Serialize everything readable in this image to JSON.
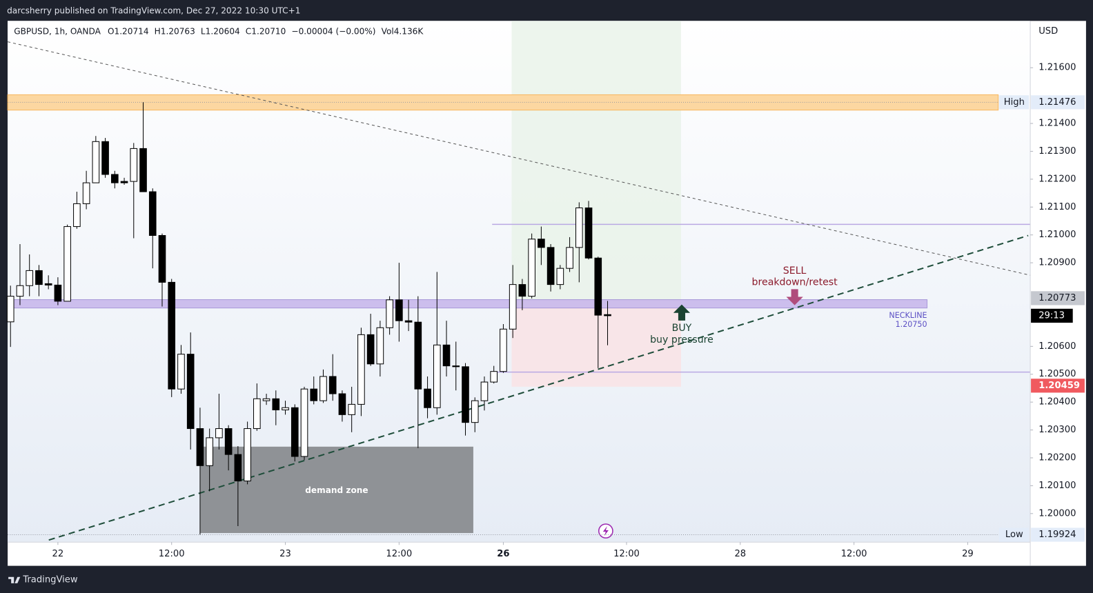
{
  "header": {
    "author_line": "darcsherry published on TradingView.com, Dec 27, 2022 10:30 UTC+1"
  },
  "footer": {
    "brand": "TradingView"
  },
  "chart_data": {
    "type": "candlestick",
    "legend": {
      "symbol": "GBPUSD, 1h, OANDA",
      "open": "O1.20714",
      "high": "H1.20763",
      "low": "L1.20604",
      "close": "C1.20710",
      "change": "−0.00004 (−0.00%)",
      "volume": "Vol4.136K"
    },
    "currency": "USD",
    "x": [
      0,
      1,
      2,
      3,
      4,
      5,
      6,
      7,
      8,
      9,
      10,
      11,
      12,
      13,
      14,
      15,
      16,
      17,
      18,
      19,
      20,
      21,
      22,
      23,
      24,
      25,
      26,
      27,
      28,
      29,
      30,
      31,
      32,
      33,
      34,
      35,
      36,
      37,
      38,
      39,
      40,
      41,
      42,
      43,
      44,
      45,
      46,
      47,
      48,
      49,
      50,
      51,
      52,
      53,
      54,
      55,
      56,
      57,
      58,
      59,
      60,
      61,
      62,
      63
    ],
    "open": [
      1.20688,
      1.2078,
      1.20818,
      1.20872,
      1.20825,
      1.2082,
      1.20762,
      1.2103,
      1.21112,
      1.21187,
      1.21335,
      1.21217,
      1.21192,
      1.21192,
      1.2131,
      1.21155,
      1.20998,
      1.2083,
      1.20447,
      1.20572,
      1.20305,
      1.20172,
      1.20272,
      1.20305,
      1.20212,
      1.20117,
      1.20305,
      1.20405,
      1.20412,
      1.20372,
      1.2038,
      1.20205,
      1.20447,
      1.20405,
      1.20492,
      1.2043,
      1.20355,
      1.20392,
      1.20642,
      1.20537,
      1.20667,
      1.20767,
      1.20692,
      1.20687,
      1.20447,
      1.2038,
      1.20605,
      1.2053,
      1.20527,
      1.20327,
      1.20405,
      1.20472,
      1.2051,
      1.20662,
      1.20822,
      1.2078,
      1.20985,
      1.20955,
      1.20822,
      1.2088,
      1.20955,
      1.21097,
      1.20917,
      1.20714
    ],
    "high": [
      1.20818,
      1.20967,
      1.2093,
      1.20892,
      1.20855,
      1.20848,
      1.21037,
      1.21155,
      1.2123,
      1.21355,
      1.21348,
      1.2123,
      1.21205,
      1.2133,
      1.21476,
      1.21167,
      1.21005,
      1.20842,
      1.20605,
      1.2065,
      1.2038,
      1.20305,
      1.2043,
      1.20317,
      1.20242,
      1.2033,
      1.20467,
      1.2043,
      1.20442,
      1.20405,
      1.20392,
      1.20455,
      1.20492,
      1.20517,
      1.20572,
      1.20442,
      1.20455,
      1.20667,
      1.20717,
      1.20692,
      1.2078,
      1.209,
      1.20767,
      1.2078,
      1.20492,
      1.20867,
      1.20692,
      1.20617,
      1.2054,
      1.20417,
      1.20492,
      1.2053,
      1.2068,
      1.20892,
      1.20842,
      1.21005,
      1.2103,
      1.20967,
      1.20892,
      1.20992,
      1.21117,
      1.21122,
      1.20922,
      1.20763
    ],
    "low": [
      1.20598,
      1.20748,
      1.2078,
      1.2078,
      1.20805,
      1.20748,
      1.20762,
      1.21022,
      1.21092,
      1.21187,
      1.21205,
      1.21167,
      1.2118,
      1.20988,
      1.21155,
      1.2088,
      1.20743,
      1.20418,
      1.2043,
      1.2023,
      1.19924,
      1.2008,
      1.2023,
      1.20155,
      1.19955,
      1.20105,
      1.20297,
      1.2039,
      1.20317,
      1.20355,
      1.20187,
      1.20192,
      1.20392,
      1.20397,
      1.20405,
      1.2033,
      1.20292,
      1.2035,
      1.2053,
      1.20492,
      1.20642,
      1.20617,
      1.20655,
      1.20235,
      1.20342,
      1.20355,
      1.20492,
      1.20442,
      1.2028,
      1.20292,
      1.2037,
      1.20467,
      1.20505,
      1.2063,
      1.2073,
      1.20772,
      1.20892,
      1.20797,
      1.20805,
      1.20867,
      1.2083,
      1.20912,
      1.20522,
      1.20604
    ],
    "close": [
      1.2078,
      1.20818,
      1.20872,
      1.20822,
      1.2082,
      1.20762,
      1.2103,
      1.21112,
      1.21187,
      1.21335,
      1.21217,
      1.21187,
      1.21187,
      1.2131,
      1.21155,
      1.20998,
      1.2083,
      1.20447,
      1.20572,
      1.20305,
      1.20172,
      1.20272,
      1.20305,
      1.20212,
      1.20117,
      1.20305,
      1.20412,
      1.20412,
      1.20372,
      1.2038,
      1.20205,
      1.20447,
      1.20405,
      1.20492,
      1.2043,
      1.20355,
      1.20392,
      1.20642,
      1.20537,
      1.20667,
      1.20767,
      1.20692,
      1.20687,
      1.20447,
      1.2038,
      1.20605,
      1.2053,
      1.20527,
      1.20327,
      1.20405,
      1.20472,
      1.2051,
      1.20662,
      1.20822,
      1.2078,
      1.20985,
      1.20955,
      1.20822,
      1.2088,
      1.20955,
      1.21097,
      1.20917,
      1.20712,
      1.2071
    ],
    "up_color": "#ffffff",
    "down_color": "#000000",
    "wick_color": "#000000",
    "xlim": [
      -0.3,
      107.6
    ],
    "xticks": [
      {
        "value": 5,
        "label": "22"
      },
      {
        "value": 17,
        "label": "12:00"
      },
      {
        "value": 29,
        "label": "23"
      },
      {
        "value": 41,
        "label": "12:00"
      },
      {
        "value": 52,
        "label": "26"
      },
      {
        "value": 65,
        "label": "12:00"
      },
      {
        "value": 77,
        "label": "28"
      },
      {
        "value": 89,
        "label": "12:00"
      },
      {
        "value": 101,
        "label": "29"
      }
    ],
    "ylim": [
      1.198975,
      1.21768
    ],
    "yticks": [
      {
        "value": 1.216,
        "label": "1.21600"
      },
      {
        "value": 1.214,
        "label": "1.21400"
      },
      {
        "value": 1.213,
        "label": "1.21300"
      },
      {
        "value": 1.212,
        "label": "1.21200"
      },
      {
        "value": 1.211,
        "label": "1.21100"
      },
      {
        "value": 1.21,
        "label": "1.21000"
      },
      {
        "value": 1.209,
        "label": "1.20900"
      },
      {
        "value": 1.206,
        "label": "1.20600"
      },
      {
        "value": 1.205,
        "label": "1.20500"
      },
      {
        "value": 1.204,
        "label": "1.20400"
      },
      {
        "value": 1.203,
        "label": "1.20300"
      },
      {
        "value": 1.202,
        "label": "1.20200"
      },
      {
        "value": 1.201,
        "label": "1.20100"
      },
      {
        "value": 1.2,
        "label": "1.20000"
      }
    ],
    "price_labels": [
      {
        "value": 1.21476,
        "label": "1.21476",
        "tag": "High",
        "color": "#e3ecf9"
      },
      {
        "value": 1.20773,
        "label": "1.20773",
        "color": "#c5c8cf"
      },
      {
        "value": 1.20459,
        "label": "1.20459",
        "color": "#f05a5f"
      },
      {
        "value": 1.19924,
        "label": "1.19924",
        "tag": "Low",
        "color": "#e3ecf9"
      }
    ],
    "countdown": "29:13",
    "annotations": {
      "sell": "SELL",
      "sell_note": "breakdown/retest",
      "buy": "BUY",
      "buy_note": "buy pressure",
      "neckline": "NECKLINE",
      "neckline_price": {
        "value": 1.2075,
        "label": "1.20750"
      },
      "demand": "demand zone"
    }
  }
}
